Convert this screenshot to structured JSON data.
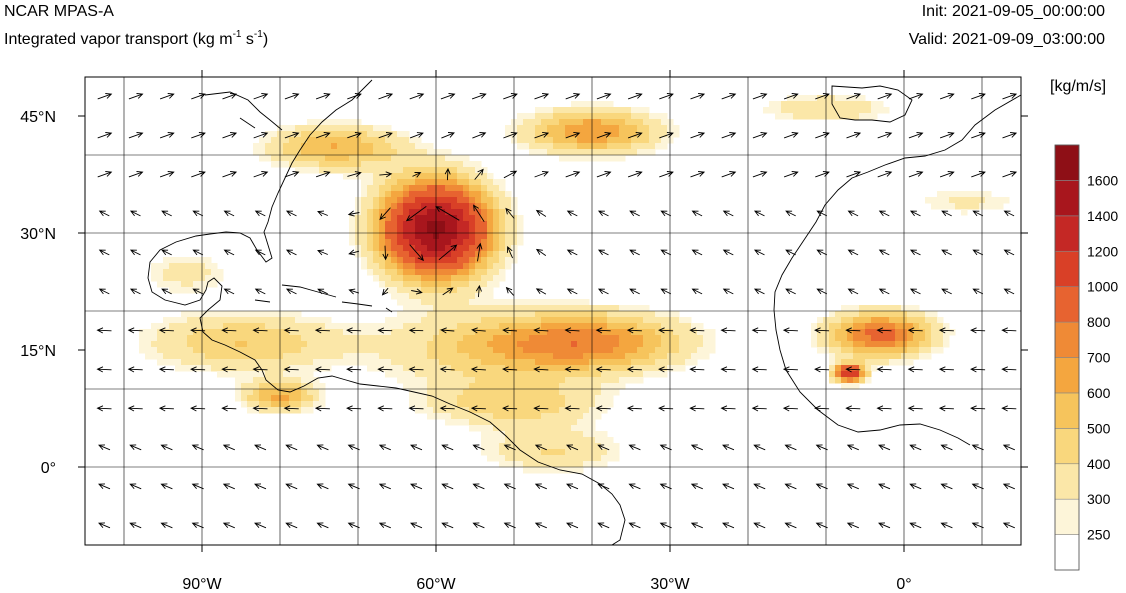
{
  "header": {
    "model_name": "NCAR MPAS-A",
    "field_title": "Integrated vapor transport (kg m",
    "field_exp1": "-1",
    "field_mid": " s",
    "field_exp2": "-1",
    "field_close": ")",
    "init_label": "Init: 2021-09-05_00:00:00",
    "valid_label": "Valid: 2021-09-09_03:00:00"
  },
  "map": {
    "lon_range": [
      -105,
      15
    ],
    "lat_range": [
      -10,
      50
    ],
    "lon_ticks": [
      {
        "lon": -90,
        "label": "90°W"
      },
      {
        "lon": -60,
        "label": "60°W"
      },
      {
        "lon": -30,
        "label": "30°W"
      },
      {
        "lon": 0,
        "label": "0°"
      }
    ],
    "lat_ticks": [
      {
        "lat": 45,
        "label": "45°N"
      },
      {
        "lat": 30,
        "label": "30°N"
      },
      {
        "lat": 15,
        "label": "15°N"
      },
      {
        "lat": 0,
        "label": "0°"
      }
    ],
    "grid_lon_step": 10,
    "grid_lat_step": 10,
    "grid": true,
    "hurricane_center": {
      "lon": -60,
      "lat": 30
    },
    "ivt_features": [
      {
        "lon": -60,
        "lat": 30.5,
        "rx": 7,
        "ry": 6,
        "max": 1650
      },
      {
        "lon": -73,
        "lat": 41,
        "rx": 9,
        "ry": 3,
        "max": 600
      },
      {
        "lon": -40,
        "lat": 43,
        "rx": 9,
        "ry": 3,
        "max": 700
      },
      {
        "lon": -40,
        "lat": 16,
        "rx": 13,
        "ry": 4,
        "max": 700
      },
      {
        "lon": -85,
        "lat": 16,
        "rx": 13,
        "ry": 4,
        "max": 500
      },
      {
        "lon": -55,
        "lat": 15,
        "rx": 14,
        "ry": 5,
        "max": 400
      },
      {
        "lon": -50,
        "lat": 8,
        "rx": 12,
        "ry": 3,
        "max": 450
      },
      {
        "lon": -3,
        "lat": 17,
        "rx": 7,
        "ry": 3,
        "max": 850
      },
      {
        "lon": -7,
        "lat": 12,
        "rx": 2,
        "ry": 1.2,
        "max": 1150
      },
      {
        "lon": -10,
        "lat": 46,
        "rx": 9,
        "ry": 2,
        "max": 400
      },
      {
        "lon": -45,
        "lat": 2,
        "rx": 10,
        "ry": 3,
        "max": 400
      },
      {
        "lon": -92,
        "lat": 25,
        "rx": 6,
        "ry": 3,
        "max": 350
      },
      {
        "lon": 8,
        "lat": 34,
        "rx": 8,
        "ry": 2,
        "max": 320
      },
      {
        "lon": -80,
        "lat": 9,
        "rx": 5,
        "ry": 2,
        "max": 600
      }
    ]
  },
  "colorbar": {
    "unit_label": "[kg/m/s]",
    "levels": [
      "250",
      "300",
      "400",
      "500",
      "600",
      "700",
      "800",
      "1000",
      "1200",
      "1400",
      "1600"
    ],
    "colors": [
      "#ffffff",
      "#fdf5d9",
      "#fbe7a8",
      "#f9d77d",
      "#f6c45c",
      "#f4a63f",
      "#ef8a36",
      "#e76330",
      "#d94027",
      "#c42825",
      "#a8161d",
      "#8e0f16"
    ]
  }
}
